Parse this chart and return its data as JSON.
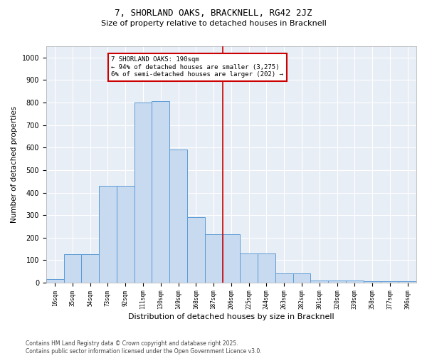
{
  "title": "7, SHORLAND OAKS, BRACKNELL, RG42 2JZ",
  "subtitle": "Size of property relative to detached houses in Bracknell",
  "xlabel": "Distribution of detached houses by size in Bracknell",
  "ylabel": "Number of detached properties",
  "bar_labels": [
    "16sqm",
    "35sqm",
    "54sqm",
    "73sqm",
    "92sqm",
    "111sqm",
    "130sqm",
    "149sqm",
    "168sqm",
    "187sqm",
    "206sqm",
    "225sqm",
    "244sqm",
    "263sqm",
    "282sqm",
    "301sqm",
    "320sqm",
    "339sqm",
    "358sqm",
    "377sqm",
    "396sqm"
  ],
  "bar_heights": [
    15,
    125,
    125,
    430,
    430,
    800,
    805,
    590,
    290,
    215,
    215,
    130,
    130,
    40,
    40,
    10,
    10,
    10,
    5,
    5,
    5
  ],
  "bar_color": "#c8daf0",
  "bar_edge_color": "#5b9bd5",
  "vline_position": 9.5,
  "vline_color": "#cc0000",
  "annotation_text": "7 SHORLAND OAKS: 190sqm\n← 94% of detached houses are smaller (3,275)\n6% of semi-detached houses are larger (202) →",
  "annotation_box_color": "#cc0000",
  "ylim": [
    0,
    1050
  ],
  "yticks": [
    0,
    100,
    200,
    300,
    400,
    500,
    600,
    700,
    800,
    900,
    1000
  ],
  "bg_color": "#e8eef6",
  "grid_color": "#ffffff",
  "footer": "Contains HM Land Registry data © Crown copyright and database right 2025.\nContains public sector information licensed under the Open Government Licence v3.0.",
  "title_fontsize": 9,
  "subtitle_fontsize": 8,
  "ylabel_fontsize": 7.5,
  "xlabel_fontsize": 8,
  "ytick_fontsize": 7,
  "xtick_fontsize": 5.5,
  "annot_fontsize": 6.5,
  "footer_fontsize": 5.5
}
